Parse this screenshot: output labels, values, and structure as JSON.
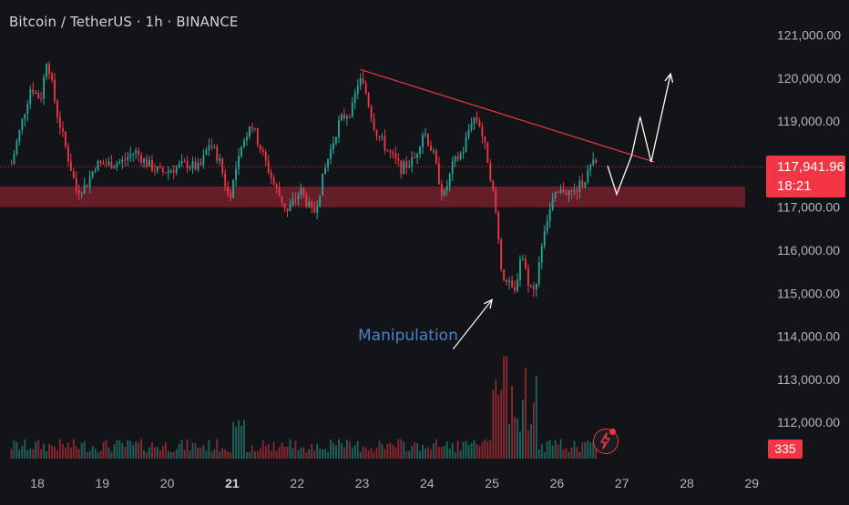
{
  "header": {
    "symbol_title": "Bitcoin / TetherUS · 1h · BINANCE"
  },
  "price_scale": {
    "current_price": "117,941.96",
    "countdown": "18:21",
    "volume_value": "335"
  },
  "annotation": {
    "text": "Manipulation"
  },
  "colors": {
    "background": "#121418",
    "up": "#26a69a",
    "down": "#f23645",
    "zone": "#7a1f2c",
    "trendline": "#f23645",
    "arrows": "#ffffff",
    "annotation_text": "#4d82c9",
    "axis_text": "#b2b5be"
  },
  "icons": {
    "flash": "lightning-icon"
  },
  "chart_data": {
    "type": "candlestick",
    "symbol": "Bitcoin / TetherUS",
    "interval": "1h",
    "exchange": "BINANCE",
    "x_ticks": [
      "18",
      "19",
      "20",
      "21",
      "22",
      "23",
      "24",
      "25",
      "26",
      "27",
      "28",
      "29"
    ],
    "x_tick_bold": [
      "21"
    ],
    "y_ticks": [
      121000,
      120000,
      119000,
      118000,
      117000,
      116000,
      115000,
      114000,
      113000,
      112000
    ],
    "y_tick_labels": [
      "121,000.00",
      "120,000.00",
      "119,000.00",
      "118,000.00",
      "117,000.00",
      "116,000.00",
      "115,000.00",
      "114,000.00",
      "113,000.00",
      "112,000.00"
    ],
    "ylim": [
      111500,
      121400
    ],
    "xlim": [
      17.6,
      29.0
    ],
    "last_price": 117941.96,
    "grid": false,
    "close_path": [
      {
        "day": 17.6,
        "price": 118000
      },
      {
        "day": 17.75,
        "price": 118900
      },
      {
        "day": 17.9,
        "price": 119800
      },
      {
        "day": 18.05,
        "price": 119500
      },
      {
        "day": 18.15,
        "price": 120500
      },
      {
        "day": 18.3,
        "price": 119200
      },
      {
        "day": 18.45,
        "price": 118300
      },
      {
        "day": 18.6,
        "price": 117400
      },
      {
        "day": 18.75,
        "price": 117500
      },
      {
        "day": 18.9,
        "price": 118000
      },
      {
        "day": 19.1,
        "price": 118000
      },
      {
        "day": 19.3,
        "price": 118050
      },
      {
        "day": 19.5,
        "price": 118300
      },
      {
        "day": 19.7,
        "price": 118000
      },
      {
        "day": 19.9,
        "price": 117800
      },
      {
        "day": 20.1,
        "price": 117900
      },
      {
        "day": 20.3,
        "price": 118000
      },
      {
        "day": 20.5,
        "price": 117900
      },
      {
        "day": 20.65,
        "price": 118500
      },
      {
        "day": 20.8,
        "price": 118100
      },
      {
        "day": 20.95,
        "price": 117200
      },
      {
        "day": 21.1,
        "price": 118100
      },
      {
        "day": 21.28,
        "price": 119000
      },
      {
        "day": 21.45,
        "price": 118300
      },
      {
        "day": 21.65,
        "price": 117500
      },
      {
        "day": 21.85,
        "price": 116900
      },
      {
        "day": 22.05,
        "price": 117400
      },
      {
        "day": 22.25,
        "price": 116800
      },
      {
        "day": 22.45,
        "price": 118000
      },
      {
        "day": 22.65,
        "price": 119000
      },
      {
        "day": 22.85,
        "price": 119300
      },
      {
        "day": 22.95,
        "price": 120000
      },
      {
        "day": 23.05,
        "price": 119700
      },
      {
        "day": 23.2,
        "price": 118800
      },
      {
        "day": 23.4,
        "price": 118300
      },
      {
        "day": 23.6,
        "price": 117900
      },
      {
        "day": 23.8,
        "price": 118100
      },
      {
        "day": 23.95,
        "price": 118800
      },
      {
        "day": 24.1,
        "price": 118200
      },
      {
        "day": 24.25,
        "price": 117200
      },
      {
        "day": 24.4,
        "price": 118000
      },
      {
        "day": 24.55,
        "price": 118300
      },
      {
        "day": 24.7,
        "price": 119100
      },
      {
        "day": 24.8,
        "price": 119000
      },
      {
        "day": 24.95,
        "price": 118000
      },
      {
        "day": 25.05,
        "price": 117000
      },
      {
        "day": 25.15,
        "price": 115500
      },
      {
        "day": 25.25,
        "price": 115200
      },
      {
        "day": 25.35,
        "price": 115000
      },
      {
        "day": 25.45,
        "price": 116000
      },
      {
        "day": 25.55,
        "price": 115300
      },
      {
        "day": 25.65,
        "price": 115000
      },
      {
        "day": 25.8,
        "price": 116500
      },
      {
        "day": 25.95,
        "price": 117200
      },
      {
        "day": 26.1,
        "price": 117400
      },
      {
        "day": 26.25,
        "price": 117300
      },
      {
        "day": 26.4,
        "price": 117600
      },
      {
        "day": 26.55,
        "price": 118000
      },
      {
        "day": 26.62,
        "price": 117950
      }
    ],
    "volume_scale_max": 1500,
    "support_zone": {
      "from_price": 117000,
      "to_price": 117480,
      "from_day": 17.6,
      "to_day": 28.7
    },
    "trendline": {
      "from": {
        "day": 22.97,
        "price": 120200
      },
      "to": {
        "day": 27.5,
        "price": 118050
      }
    },
    "projection_path": [
      {
        "day": 26.78,
        "price": 117960
      },
      {
        "day": 26.92,
        "price": 117300
      },
      {
        "day": 27.15,
        "price": 118200
      },
      {
        "day": 27.28,
        "price": 119100
      },
      {
        "day": 27.45,
        "price": 118050
      },
      {
        "day": 27.75,
        "price": 120100
      }
    ],
    "manipulation_arrow": {
      "from": {
        "day": 24.4,
        "price": 113700
      },
      "to": {
        "day": 25.0,
        "price": 114850
      }
    }
  }
}
